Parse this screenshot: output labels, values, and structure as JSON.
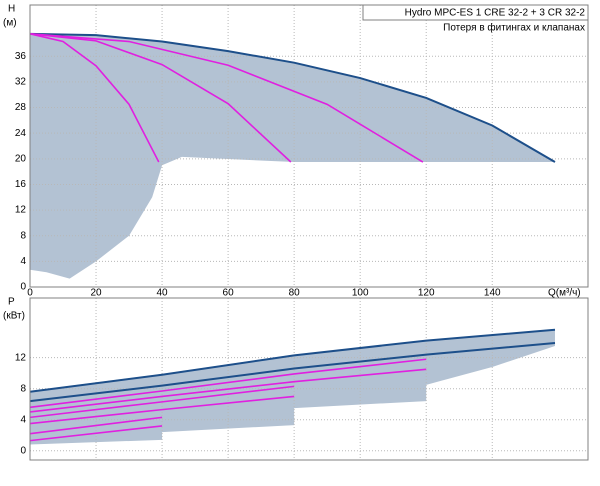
{
  "chart_data": [
    {
      "type": "line",
      "ylabel": "H",
      "yunit": "(м)",
      "xlabel": "Q(м³/ч)",
      "annotations": [
        "Hydro MPC-ES 1 CRE 32-2  +  3 CR 32-2",
        "Потеря в фитингах и клапанах"
      ],
      "xlim": [
        0,
        169
      ],
      "ylim": [
        0,
        44
      ],
      "xticks": [
        0,
        20,
        40,
        60,
        80,
        100,
        120,
        140
      ],
      "yticks": [
        0,
        4,
        8,
        12,
        16,
        20,
        24,
        28,
        32,
        36
      ],
      "xtick_labels": true,
      "grid": true,
      "area": {
        "color": "#b3c2d3",
        "x": [
          0,
          20,
          40,
          60,
          80,
          100,
          120,
          140,
          159,
          120,
          80,
          46,
          40,
          37,
          30,
          20,
          12,
          5,
          0
        ],
        "values": [
          39.5,
          39.3,
          38.3,
          36.8,
          35,
          32.6,
          29.5,
          25.2,
          19.5,
          19.5,
          19.5,
          20.3,
          19,
          14,
          8,
          4,
          1.3,
          2.3,
          2.7
        ]
      },
      "series": [
        {
          "color": "#1d4f8a",
          "x": [
            0,
            20,
            40,
            60,
            80,
            100,
            120,
            140,
            159
          ],
          "values": [
            39.5,
            39.3,
            38.3,
            36.8,
            35,
            32.6,
            29.5,
            25.2,
            19.5
          ]
        },
        {
          "color": "#e020e0",
          "x": [
            0,
            10,
            20,
            30,
            39
          ],
          "values": [
            39.5,
            38.3,
            34.5,
            28.5,
            19.5
          ]
        },
        {
          "color": "#e020e0",
          "x": [
            0,
            20,
            40,
            60,
            79
          ],
          "values": [
            39.5,
            38.4,
            34.7,
            28.6,
            19.5
          ]
        },
        {
          "color": "#e020e0",
          "x": [
            0,
            30,
            60,
            90,
            119
          ],
          "values": [
            39.5,
            38.3,
            34.6,
            28.5,
            19.5
          ]
        }
      ]
    },
    {
      "type": "line",
      "ylabel": "P",
      "yunit": "(кВт)",
      "xlim": [
        0,
        169
      ],
      "ylim": [
        -1.2,
        19.7
      ],
      "xticks": [
        0,
        20,
        40,
        60,
        80,
        100,
        120,
        140
      ],
      "yticks": [
        0,
        4,
        8,
        12
      ],
      "xtick_labels": false,
      "grid": true,
      "area": {
        "color": "#b3c2d3",
        "x": [
          0,
          40,
          80,
          120,
          159,
          159,
          140,
          120,
          120,
          80,
          80,
          40,
          40,
          0
        ],
        "values": [
          7.7,
          9.9,
          12.4,
          14.2,
          15.7,
          13.5,
          10.8,
          8.5,
          6.4,
          5.5,
          3.3,
          2.4,
          1.4,
          0.8
        ]
      },
      "series": [
        {
          "color": "#1d4f8a",
          "x": [
            0,
            40,
            80,
            120,
            159
          ],
          "values": [
            7.6,
            9.8,
            12.3,
            14.2,
            15.6
          ]
        },
        {
          "color": "#1d4f8a",
          "x": [
            0,
            40,
            80,
            120,
            159
          ],
          "values": [
            6.4,
            8.4,
            10.6,
            12.4,
            13.9
          ]
        },
        {
          "color": "#e020e0",
          "x": [
            0,
            40,
            80,
            120
          ],
          "values": [
            5.6,
            7.7,
            9.9,
            11.8
          ]
        },
        {
          "color": "#e020e0",
          "x": [
            0,
            40,
            80,
            120
          ],
          "values": [
            5.0,
            7.0,
            8.9,
            10.5
          ]
        },
        {
          "color": "#e020e0",
          "x": [
            0,
            40,
            80
          ],
          "values": [
            4.3,
            6.3,
            8.3
          ]
        },
        {
          "color": "#e020e0",
          "x": [
            0,
            40,
            80
          ],
          "values": [
            3.5,
            5.3,
            7.0
          ]
        },
        {
          "color": "#e020e0",
          "x": [
            0,
            40
          ],
          "values": [
            2.2,
            4.3
          ]
        },
        {
          "color": "#e020e0",
          "x": [
            0,
            40
          ],
          "values": [
            1.3,
            3.2
          ]
        }
      ]
    }
  ]
}
